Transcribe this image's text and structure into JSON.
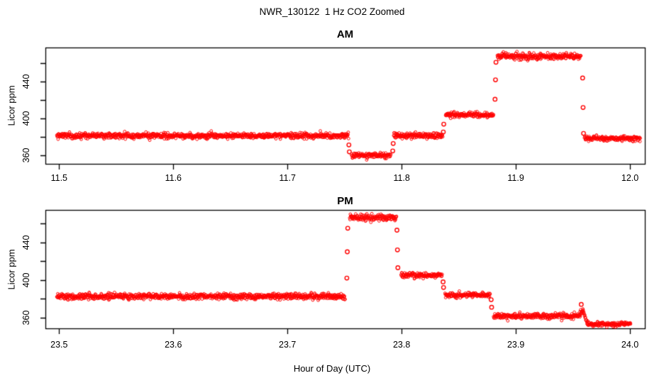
{
  "figure": {
    "title": "NWR_130122  1 Hz CO2 Zoomed",
    "xlabel": "Hour of Day (UTC)",
    "background": "#ffffff",
    "point_color": "#ff0000",
    "axis_color": "#000000",
    "grid": false,
    "legend": "none"
  },
  "chart_data": [
    {
      "type": "scatter",
      "panel": "AM",
      "title": "AM",
      "ylabel": "Licor ppm",
      "marker": "open-circle",
      "sample_rate_hz": 1,
      "xlim": [
        11.488,
        12.013
      ],
      "ylim": [
        351,
        477
      ],
      "xticks": [
        11.5,
        11.6,
        11.7,
        11.8,
        11.9,
        12.0
      ],
      "xtick_labels": [
        "11.5",
        "11.6",
        "11.7",
        "11.8",
        "11.9",
        "12.0"
      ],
      "yticks_labeled": [
        360,
        400,
        440
      ],
      "ytick_labels": [
        "360",
        "400",
        "440"
      ],
      "yticks_all": [
        360,
        380,
        400,
        420,
        440,
        460
      ],
      "segments": [
        {
          "t0": 11.498,
          "t1": 11.7535,
          "v0": 381.5,
          "sd": 1.5
        },
        {
          "t0": 11.756,
          "t1": 11.7905,
          "v0": 360.5,
          "sd": 1.4
        },
        {
          "t0": 11.793,
          "t1": 11.836,
          "v0": 381.5,
          "sd": 1.5
        },
        {
          "t0": 11.8385,
          "t1": 11.8805,
          "v0": 404.0,
          "sd": 1.4
        },
        {
          "t0": 11.8838,
          "t1": 11.957,
          "v0": 467.5,
          "sd": 1.6
        },
        {
          "t0": 11.9601,
          "t1": 12.009,
          "v0": 378.5,
          "sd": 1.4
        }
      ],
      "transition_points": [
        {
          "t": 11.7538,
          "v": 371.5
        },
        {
          "t": 11.7542,
          "v": 364.0
        },
        {
          "t": 11.7922,
          "v": 365.0
        },
        {
          "t": 11.7926,
          "v": 373.0
        },
        {
          "t": 11.8365,
          "v": 385.5
        },
        {
          "t": 11.8369,
          "v": 394.0
        },
        {
          "t": 11.8818,
          "v": 421.0
        },
        {
          "t": 11.8822,
          "v": 442.0
        },
        {
          "t": 11.8826,
          "v": 461.0
        },
        {
          "t": 11.9585,
          "v": 444.0
        },
        {
          "t": 11.9589,
          "v": 412.0
        },
        {
          "t": 11.9593,
          "v": 384.0
        }
      ]
    },
    {
      "type": "scatter",
      "panel": "PM",
      "title": "PM",
      "ylabel": "Licor ppm",
      "marker": "open-circle",
      "sample_rate_hz": 1,
      "xlim": [
        23.488,
        24.013
      ],
      "ylim": [
        348.5,
        474.5
      ],
      "xticks": [
        23.5,
        23.6,
        23.7,
        23.8,
        23.9,
        24.0
      ],
      "xtick_labels": [
        "23.5",
        "23.6",
        "23.7",
        "23.8",
        "23.9",
        "24.0"
      ],
      "yticks_labeled": [
        360,
        400,
        440
      ],
      "ytick_labels": [
        "360",
        "400",
        "440"
      ],
      "yticks_all": [
        360,
        380,
        400,
        420,
        440,
        460
      ],
      "segments": [
        {
          "t0": 23.498,
          "t1": 23.7505,
          "v0": 382.5,
          "sd": 1.5
        },
        {
          "t0": 23.7545,
          "t1": 23.7955,
          "v0": 466.5,
          "sd": 1.6
        },
        {
          "t0": 23.7995,
          "t1": 23.8355,
          "v0": 405.0,
          "sd": 1.4
        },
        {
          "t0": 23.838,
          "t1": 23.8775,
          "v0": 384.0,
          "sd": 1.4
        },
        {
          "t0": 23.8805,
          "t1": 23.9562,
          "v0": 361.5,
          "sd": 1.5
        },
        {
          "t0": 23.9562,
          "t1": 23.959,
          "v0": 363.0,
          "v1": 368.0,
          "sd": 1.7
        },
        {
          "t0": 23.959,
          "t1": 23.9627,
          "v0": 366.0,
          "v1": 354.0,
          "sd": 1.5
        },
        {
          "t0": 23.9627,
          "t1": 24.0005,
          "v0": 353.0,
          "sd": 1.3
        }
      ],
      "transition_points": [
        {
          "t": 23.752,
          "v": 402.0
        },
        {
          "t": 23.7524,
          "v": 430.0
        },
        {
          "t": 23.7528,
          "v": 455.0
        },
        {
          "t": 23.7959,
          "v": 453.0
        },
        {
          "t": 23.7963,
          "v": 432.0
        },
        {
          "t": 23.7967,
          "v": 413.0
        },
        {
          "t": 23.8363,
          "v": 398.0
        },
        {
          "t": 23.8367,
          "v": 392.0
        },
        {
          "t": 23.8784,
          "v": 379.0
        },
        {
          "t": 23.8788,
          "v": 371.0
        },
        {
          "t": 23.9573,
          "v": 374.0
        }
      ]
    }
  ]
}
